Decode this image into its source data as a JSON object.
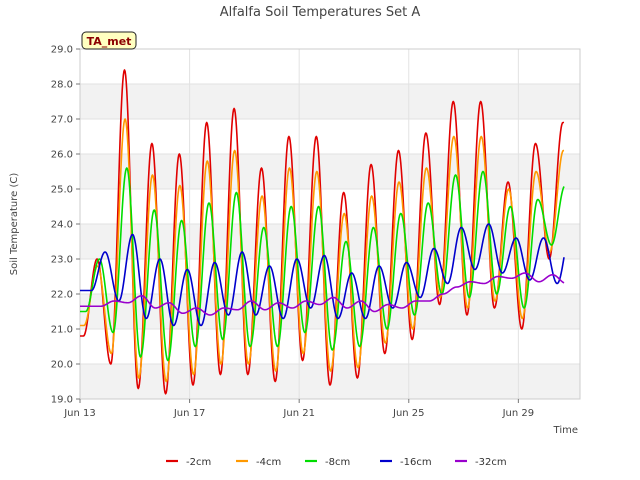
{
  "chart_data": {
    "type": "line",
    "title": "Alfalfa Soil Temperatures Set A",
    "xlabel": "Time",
    "ylabel": "Soil Temperature (C)",
    "ylim": [
      19.0,
      29.0
    ],
    "yticks": [
      "19.0",
      "20.0",
      "21.0",
      "22.0",
      "23.0",
      "24.0",
      "25.0",
      "26.0",
      "27.0",
      "28.0",
      "29.0"
    ],
    "xlim": [
      "2024-06-13",
      "2024-07-01T06:00"
    ],
    "xticks": [
      {
        "date": "2024-06-13",
        "label": "Jun 13"
      },
      {
        "date": "2024-06-17",
        "label": "Jun 17"
      },
      {
        "date": "2024-06-21",
        "label": "Jun 21"
      },
      {
        "date": "2024-06-25",
        "label": "Jun 25"
      },
      {
        "date": "2024-06-29",
        "label": "Jun 29"
      }
    ],
    "grid": true,
    "legend_position": "bottom",
    "annotation": "TA_met",
    "series": [
      {
        "name": "-2cm",
        "color": "#e00000",
        "dates": [
          "2024-06-13",
          "2024-06-30T16:00"
        ],
        "peak_day": [
          "2024-06-13T15:00",
          "2024-06-14T15:00",
          "2024-06-15T15:00",
          "2024-06-16T15:00",
          "2024-06-17T15:00",
          "2024-06-18T15:00",
          "2024-06-19T15:00",
          "2024-06-20T15:00",
          "2024-06-21T15:00",
          "2024-06-22T15:00",
          "2024-06-23T15:00",
          "2024-06-24T15:00",
          "2024-06-25T15:00",
          "2024-06-26T15:00",
          "2024-06-27T15:00",
          "2024-06-28T15:00",
          "2024-06-29T15:00",
          "2024-06-30T15:00"
        ],
        "max": [
          23.0,
          28.4,
          26.3,
          26.0,
          26.9,
          27.3,
          25.6,
          26.5,
          26.5,
          24.9,
          25.7,
          26.1,
          26.6,
          27.5,
          27.5,
          25.2,
          26.3,
          26.9
        ],
        "min": [
          20.8,
          20.0,
          19.3,
          19.15,
          19.4,
          19.7,
          19.7,
          19.5,
          20.1,
          19.4,
          19.6,
          20.3,
          20.7,
          21.7,
          21.4,
          21.6,
          21.0,
          23.0
        ]
      },
      {
        "name": "-4cm",
        "color": "#ff9900",
        "dates": [
          "2024-06-13",
          "2024-06-30T16:00"
        ],
        "peak_day": [
          "2024-06-13T15:30",
          "2024-06-14T15:30",
          "2024-06-15T15:30",
          "2024-06-16T15:30",
          "2024-06-17T15:30",
          "2024-06-18T15:30",
          "2024-06-19T15:30",
          "2024-06-20T15:30",
          "2024-06-21T15:30",
          "2024-06-22T15:30",
          "2024-06-23T15:30",
          "2024-06-24T15:30",
          "2024-06-25T15:30",
          "2024-06-26T15:30",
          "2024-06-27T15:30",
          "2024-06-28T15:30",
          "2024-06-29T15:30",
          "2024-06-30T15:30"
        ],
        "max": [
          22.8,
          27.0,
          25.4,
          25.1,
          25.8,
          26.1,
          24.8,
          25.6,
          25.5,
          24.3,
          24.8,
          25.2,
          25.6,
          26.5,
          26.5,
          25.0,
          25.5,
          26.1
        ],
        "min": [
          21.1,
          20.3,
          19.6,
          19.5,
          19.7,
          20.0,
          20.0,
          19.8,
          20.3,
          19.8,
          19.9,
          20.6,
          21.0,
          21.9,
          21.6,
          21.8,
          21.3,
          23.2
        ]
      },
      {
        "name": "-8cm",
        "color": "#00dd00",
        "dates": [
          "2024-06-13",
          "2024-06-30T16:00"
        ],
        "peak_day": [
          "2024-06-13T17:00",
          "2024-06-14T17:00",
          "2024-06-15T17:00",
          "2024-06-16T17:00",
          "2024-06-17T17:00",
          "2024-06-18T17:00",
          "2024-06-19T17:00",
          "2024-06-20T17:00",
          "2024-06-21T17:00",
          "2024-06-22T17:00",
          "2024-06-23T17:00",
          "2024-06-24T17:00",
          "2024-06-25T17:00",
          "2024-06-26T17:00",
          "2024-06-27T17:00",
          "2024-06-28T17:00",
          "2024-06-29T17:00",
          "2024-06-30T17:00"
        ],
        "max": [
          23.0,
          25.6,
          24.4,
          24.1,
          24.6,
          24.9,
          23.9,
          24.5,
          24.5,
          23.5,
          23.9,
          24.3,
          24.6,
          25.4,
          25.5,
          24.5,
          24.7,
          25.1
        ],
        "min": [
          21.5,
          20.9,
          20.2,
          20.1,
          20.5,
          20.7,
          20.5,
          20.5,
          20.9,
          20.4,
          20.5,
          21.0,
          21.4,
          22.0,
          21.9,
          22.0,
          21.6,
          23.4
        ]
      },
      {
        "name": "-16cm",
        "color": "#0000cc",
        "dates": [
          "2024-06-13",
          "2024-06-30T16:00"
        ],
        "peak_day": [
          "2024-06-13T22:00",
          "2024-06-14T22:00",
          "2024-06-15T22:00",
          "2024-06-16T22:00",
          "2024-06-17T22:00",
          "2024-06-18T22:00",
          "2024-06-19T22:00",
          "2024-06-20T22:00",
          "2024-06-21T22:00",
          "2024-06-22T22:00",
          "2024-06-23T22:00",
          "2024-06-24T22:00",
          "2024-06-25T22:00",
          "2024-06-26T22:00",
          "2024-06-27T22:00",
          "2024-06-28T22:00",
          "2024-06-29T22:00",
          "2024-06-30T22:00"
        ],
        "max": [
          23.2,
          23.7,
          23.0,
          22.7,
          22.9,
          23.2,
          22.8,
          23.0,
          23.1,
          22.6,
          22.8,
          22.9,
          23.3,
          23.9,
          24.0,
          23.6,
          23.6,
          23.8
        ],
        "min": [
          22.1,
          21.8,
          21.3,
          21.1,
          21.1,
          21.4,
          21.4,
          21.3,
          21.6,
          21.3,
          21.3,
          21.6,
          21.9,
          22.3,
          22.7,
          22.6,
          22.4,
          22.3
        ]
      },
      {
        "name": "-32cm",
        "color": "#9900cc",
        "dates": [
          "2024-06-13",
          "2024-06-30T16:00"
        ],
        "peak_day": [
          "2024-06-14T06:00",
          "2024-06-15T06:00",
          "2024-06-16T06:00",
          "2024-06-17T06:00",
          "2024-06-18T06:00",
          "2024-06-19T06:00",
          "2024-06-20T06:00",
          "2024-06-21T06:00",
          "2024-06-22T06:00",
          "2024-06-23T06:00",
          "2024-06-24T06:00",
          "2024-06-25T06:00",
          "2024-06-26T06:00",
          "2024-06-27T06:00",
          "2024-06-28T06:00",
          "2024-06-29T06:00",
          "2024-06-30T06:00",
          "2024-07-01T06:00"
        ],
        "max": [
          21.8,
          21.95,
          21.75,
          21.6,
          21.6,
          21.8,
          21.75,
          21.8,
          21.9,
          21.8,
          21.7,
          21.8,
          22.0,
          22.35,
          22.5,
          22.6,
          22.55,
          22.45
        ],
        "min": [
          21.65,
          21.75,
          21.6,
          21.45,
          21.4,
          21.55,
          21.55,
          21.6,
          21.7,
          21.6,
          21.5,
          21.6,
          21.8,
          22.2,
          22.3,
          22.45,
          22.35,
          22.3
        ]
      }
    ]
  }
}
